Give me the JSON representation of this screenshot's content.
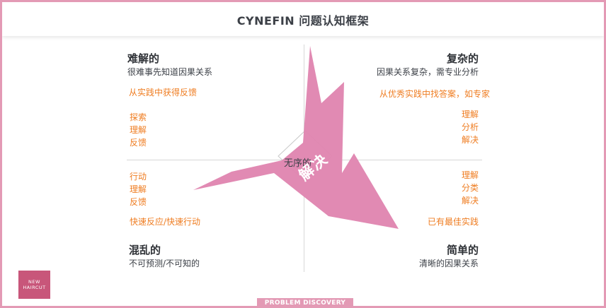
{
  "title": "CYNEFIN 问题认知框架",
  "center": {
    "label": "无序的",
    "arrow_label": "解决"
  },
  "quadrants": {
    "complex": {
      "title": "难解的",
      "subtitle": "很难事先知道因果关系",
      "strategy": "从实践中获得反馈",
      "steps": [
        "探索",
        "理解",
        "反馈"
      ]
    },
    "complicated": {
      "title": "复杂的",
      "subtitle": "因果关系复杂，需专业分析",
      "strategy": "从优秀实践中找答案，如专家",
      "steps": [
        "理解",
        "分析",
        "解决"
      ]
    },
    "chaotic": {
      "title": "混乱的",
      "subtitle": "不可预测/不可知的",
      "strategy": "快速反应/快速行动",
      "steps": [
        "行动",
        "理解",
        "反馈"
      ]
    },
    "simple": {
      "title": "简单的",
      "subtitle": "清晰的因果关系",
      "strategy": "已有最佳实践",
      "steps": [
        "理解",
        "分类",
        "解决"
      ]
    }
  },
  "logo": {
    "line1": "NEW",
    "line2": "HAIRCUT"
  },
  "footer": "PROBLEM DISCOVERY",
  "colors": {
    "accent": "#e085b0",
    "strategy": "#ef7d22",
    "frame": "#e39ab5"
  }
}
